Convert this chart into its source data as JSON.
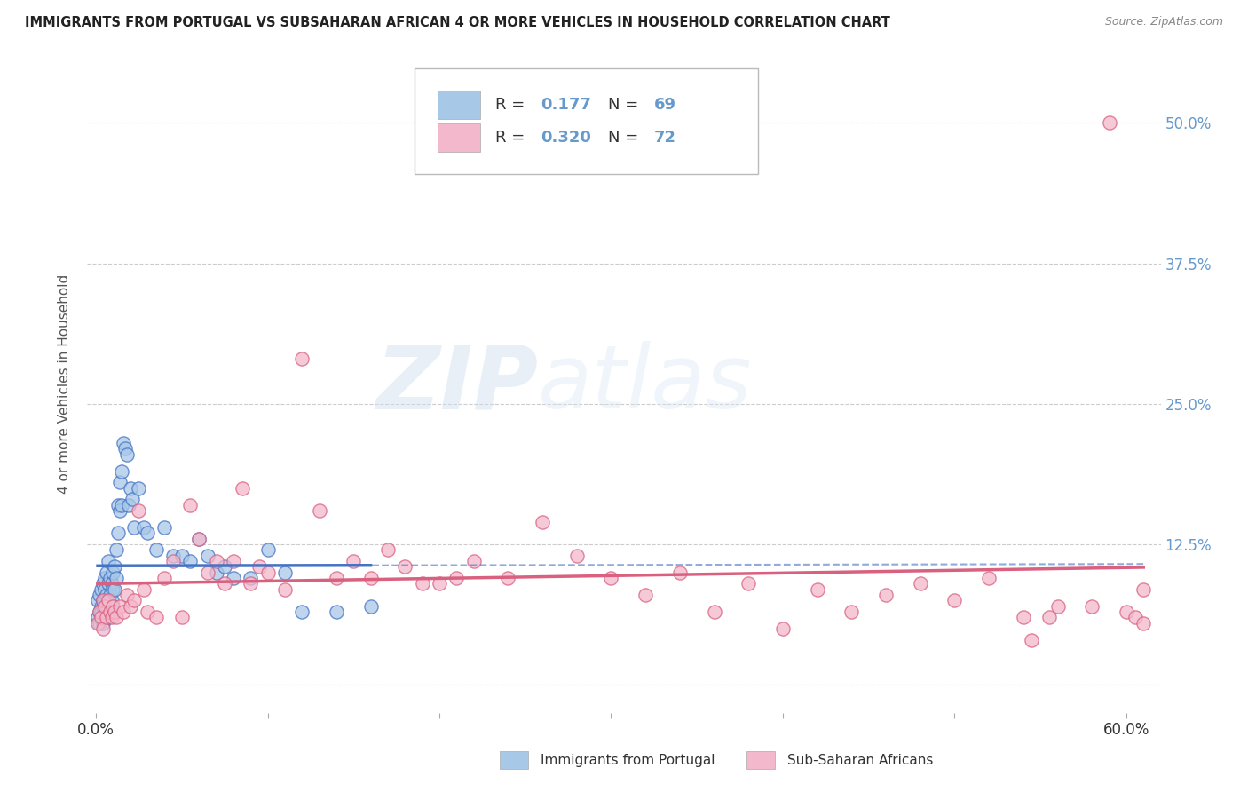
{
  "title": "IMMIGRANTS FROM PORTUGAL VS SUBSAHARAN AFRICAN 4 OR MORE VEHICLES IN HOUSEHOLD CORRELATION CHART",
  "source": "Source: ZipAtlas.com",
  "ylabel": "4 or more Vehicles in Household",
  "xlim": [
    -0.005,
    0.62
  ],
  "ylim": [
    -0.025,
    0.56
  ],
  "xticks": [
    0.0,
    0.1,
    0.2,
    0.3,
    0.4,
    0.5,
    0.6
  ],
  "xticklabels": [
    "0.0%",
    "",
    "",
    "",
    "",
    "",
    "60.0%"
  ],
  "yticks": [
    0.0,
    0.125,
    0.25,
    0.375,
    0.5
  ],
  "yticklabels": [
    "",
    "12.5%",
    "25.0%",
    "37.5%",
    "50.0%"
  ],
  "right_ytick_color": "#6699cc",
  "legend_R1": "0.177",
  "legend_N1": "69",
  "legend_R2": "0.320",
  "legend_N2": "72",
  "portugal_color": "#a8c8e8",
  "subsaharan_color": "#f4b8cc",
  "portugal_line_color": "#4472c4",
  "subsaharan_line_color": "#d9607e",
  "watermark": "ZIPatlas",
  "portugal_scatter_x": [
    0.001,
    0.001,
    0.002,
    0.002,
    0.002,
    0.003,
    0.003,
    0.003,
    0.004,
    0.004,
    0.004,
    0.004,
    0.005,
    0.005,
    0.005,
    0.005,
    0.005,
    0.006,
    0.006,
    0.006,
    0.006,
    0.007,
    0.007,
    0.007,
    0.007,
    0.008,
    0.008,
    0.008,
    0.009,
    0.009,
    0.01,
    0.01,
    0.01,
    0.011,
    0.011,
    0.012,
    0.012,
    0.013,
    0.013,
    0.014,
    0.014,
    0.015,
    0.015,
    0.016,
    0.017,
    0.018,
    0.019,
    0.02,
    0.021,
    0.022,
    0.025,
    0.028,
    0.03,
    0.035,
    0.04,
    0.045,
    0.05,
    0.055,
    0.06,
    0.065,
    0.07,
    0.075,
    0.08,
    0.09,
    0.1,
    0.11,
    0.12,
    0.14,
    0.16
  ],
  "portugal_scatter_y": [
    0.06,
    0.075,
    0.065,
    0.055,
    0.08,
    0.07,
    0.085,
    0.065,
    0.075,
    0.055,
    0.09,
    0.07,
    0.085,
    0.075,
    0.095,
    0.065,
    0.06,
    0.1,
    0.08,
    0.065,
    0.075,
    0.11,
    0.09,
    0.075,
    0.06,
    0.095,
    0.08,
    0.065,
    0.09,
    0.075,
    0.1,
    0.085,
    0.07,
    0.105,
    0.085,
    0.12,
    0.095,
    0.16,
    0.135,
    0.18,
    0.155,
    0.19,
    0.16,
    0.215,
    0.21,
    0.205,
    0.16,
    0.175,
    0.165,
    0.14,
    0.175,
    0.14,
    0.135,
    0.12,
    0.14,
    0.115,
    0.115,
    0.11,
    0.13,
    0.115,
    0.1,
    0.105,
    0.095,
    0.095,
    0.12,
    0.1,
    0.065,
    0.065,
    0.07
  ],
  "subsaharan_scatter_x": [
    0.001,
    0.002,
    0.003,
    0.004,
    0.004,
    0.005,
    0.006,
    0.007,
    0.008,
    0.009,
    0.01,
    0.011,
    0.012,
    0.014,
    0.016,
    0.018,
    0.02,
    0.022,
    0.025,
    0.028,
    0.03,
    0.035,
    0.04,
    0.045,
    0.05,
    0.055,
    0.06,
    0.065,
    0.07,
    0.075,
    0.08,
    0.085,
    0.09,
    0.095,
    0.1,
    0.11,
    0.12,
    0.13,
    0.14,
    0.15,
    0.16,
    0.17,
    0.18,
    0.19,
    0.2,
    0.21,
    0.22,
    0.24,
    0.26,
    0.28,
    0.3,
    0.32,
    0.34,
    0.36,
    0.38,
    0.4,
    0.42,
    0.44,
    0.46,
    0.48,
    0.5,
    0.52,
    0.54,
    0.56,
    0.58,
    0.59,
    0.6,
    0.605,
    0.61,
    0.555,
    0.545,
    0.61
  ],
  "subsaharan_scatter_y": [
    0.055,
    0.065,
    0.06,
    0.05,
    0.075,
    0.07,
    0.06,
    0.075,
    0.065,
    0.06,
    0.07,
    0.065,
    0.06,
    0.07,
    0.065,
    0.08,
    0.07,
    0.075,
    0.155,
    0.085,
    0.065,
    0.06,
    0.095,
    0.11,
    0.06,
    0.16,
    0.13,
    0.1,
    0.11,
    0.09,
    0.11,
    0.175,
    0.09,
    0.105,
    0.1,
    0.085,
    0.29,
    0.155,
    0.095,
    0.11,
    0.095,
    0.12,
    0.105,
    0.09,
    0.09,
    0.095,
    0.11,
    0.095,
    0.145,
    0.115,
    0.095,
    0.08,
    0.1,
    0.065,
    0.09,
    0.05,
    0.085,
    0.065,
    0.08,
    0.09,
    0.075,
    0.095,
    0.06,
    0.07,
    0.07,
    0.5,
    0.065,
    0.06,
    0.085,
    0.06,
    0.04,
    0.055
  ]
}
